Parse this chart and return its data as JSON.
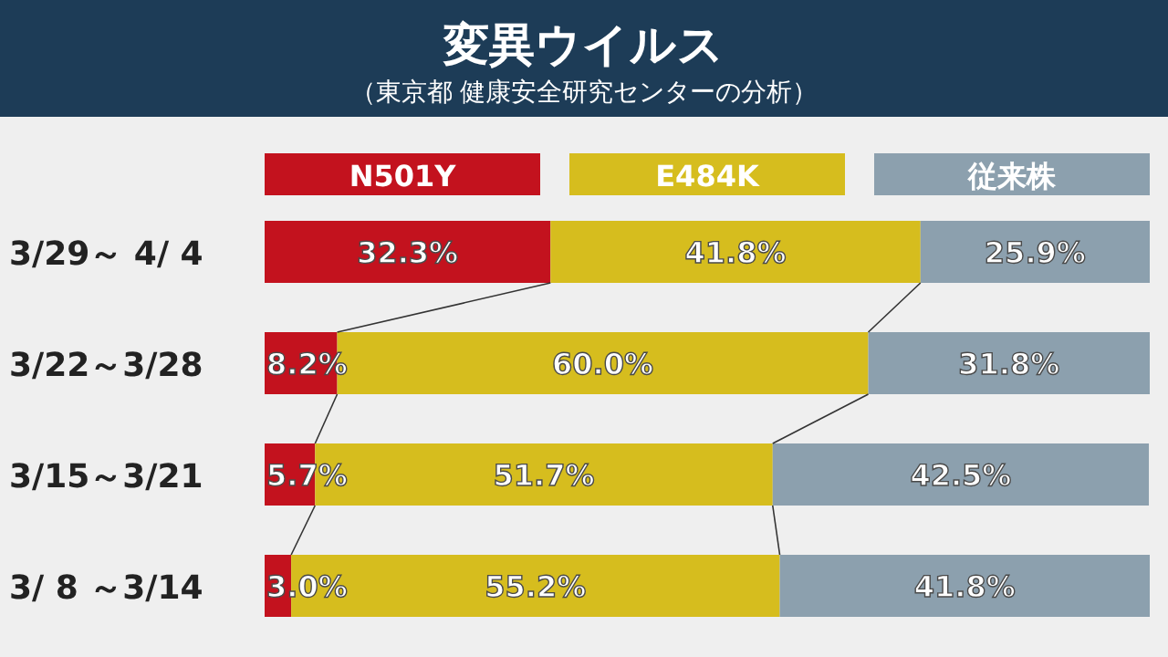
{
  "chart_data": {
    "type": "bar",
    "orientation": "horizontal",
    "stacked": true,
    "title": "変異ウイルス",
    "subtitle": "（東京都 健康安全研究センターの分析）",
    "categories": [
      "3/29～ 4/ 4",
      "3/22～3/28",
      "3/15～3/21",
      "3/ 8 ～3/14"
    ],
    "series": [
      {
        "name": "N501Y",
        "color": "#c3121e",
        "values": [
          32.3,
          8.2,
          5.7,
          3.0
        ],
        "value_labels": [
          "32.3%",
          "8.2%",
          "5.7%",
          "3.0%"
        ]
      },
      {
        "name": "E484K",
        "color": "#d6bd1e",
        "values": [
          41.8,
          60.0,
          51.7,
          55.2
        ],
        "value_labels": [
          "41.8%",
          "60.0%",
          "51.7%",
          "55.2%"
        ]
      },
      {
        "name": "従来株",
        "color": "#8ca0ae",
        "values": [
          25.9,
          31.8,
          42.5,
          41.8
        ],
        "value_labels": [
          "25.9%",
          "31.8%",
          "42.5%",
          "41.8%"
        ]
      }
    ],
    "legend": "top"
  }
}
